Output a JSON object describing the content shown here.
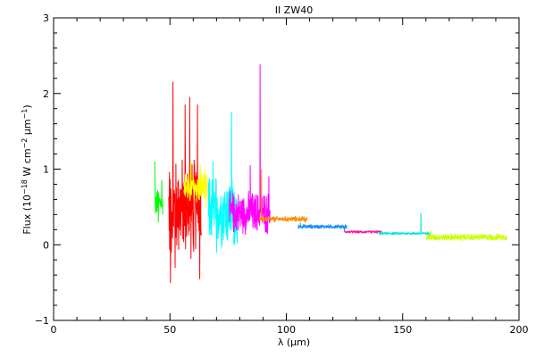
{
  "chart_data": {
    "type": "line",
    "title": "II ZW40",
    "xlabel": "λ (μm)",
    "ylabel": {
      "prefix": "Flux (10",
      "exp1": "−18",
      "mid1": " W cm",
      "exp2": "−2",
      "mid2": "μm",
      "exp3": "−1",
      "suffix": ")"
    },
    "xlim": [
      0,
      200
    ],
    "ylim": [
      -1,
      3
    ],
    "x_ticks": [
      0,
      50,
      100,
      150,
      200
    ],
    "x_tick_labels": [
      "0",
      "50",
      "100",
      "150",
      "200"
    ],
    "y_ticks": [
      -1,
      0,
      1,
      2,
      3
    ],
    "y_tick_labels": [
      "−1",
      "0",
      "1",
      "2",
      "3"
    ],
    "x_minor_step": 10,
    "y_minor_step": 0.2,
    "grid": false,
    "series": [
      {
        "color": "#00ff00",
        "x_range": [
          43.5,
          47
        ],
        "level": 0.55,
        "noise": 0.22,
        "points": [
          [
            43.5,
            1.1
          ],
          [
            45,
            0.3
          ],
          [
            46.5,
            0.85
          ]
        ]
      },
      {
        "color": "#ff0000",
        "x_range": [
          49.5,
          63.5
        ],
        "level": 0.5,
        "noise": 0.75,
        "points": [
          [
            50.2,
            -0.5
          ],
          [
            51.3,
            2.15
          ],
          [
            52.2,
            -0.3
          ],
          [
            56.5,
            1.85
          ],
          [
            58.5,
            1.95
          ],
          [
            61.8,
            1.85
          ],
          [
            62.8,
            -0.45
          ],
          [
            60,
            0.0
          ]
        ]
      },
      {
        "color": "#ffff00",
        "x_range": [
          56,
          66
        ],
        "level": 0.75,
        "noise": 0.25,
        "points": [
          [
            59,
            1.1
          ],
          [
            63,
            1.05
          ],
          [
            65.5,
            0.5
          ]
        ]
      },
      {
        "color": "#00ffff",
        "x_range": [
          66.5,
          79
        ],
        "level": 0.45,
        "noise": 0.55,
        "points": [
          [
            68.5,
            1.1
          ],
          [
            70,
            -0.1
          ],
          [
            76.5,
            1.75
          ],
          [
            77.5,
            0.0
          ]
        ]
      },
      {
        "color": "#ff00ff",
        "x_range": [
          75.5,
          93
        ],
        "level": 0.42,
        "noise": 0.32,
        "points": [
          [
            88.7,
            2.38
          ],
          [
            89.4,
            0.5
          ],
          [
            84.5,
            1.05
          ],
          [
            92.5,
            0.9
          ]
        ]
      },
      {
        "color": "#ff8c00",
        "x_range": [
          88.5,
          109
        ],
        "level": 0.34,
        "noise": 0.04,
        "points": [
          [
            89.3,
            1.0
          ],
          [
            95,
            0.3
          ],
          [
            108,
            0.3
          ]
        ]
      },
      {
        "color": "#1e90ff",
        "x_range": [
          105,
          126
        ],
        "level": 0.24,
        "noise": 0.03,
        "points": [
          [
            106,
            0.28
          ],
          [
            125,
            0.18
          ]
        ]
      },
      {
        "color": "#ff1493",
        "x_range": [
          125,
          141
        ],
        "level": 0.17,
        "noise": 0.02,
        "points": [
          [
            125,
            0.17
          ],
          [
            140,
            0.16
          ]
        ]
      },
      {
        "color": "#00e5e5",
        "x_range": [
          140,
          162
        ],
        "level": 0.15,
        "noise": 0.02,
        "points": [
          [
            157.8,
            0.42
          ],
          [
            158.4,
            0.15
          ]
        ]
      },
      {
        "color": "#ccff00",
        "x_range": [
          160,
          195
        ],
        "level": 0.1,
        "noise": 0.05,
        "points": [
          [
            162,
            0.19
          ],
          [
            175,
            0.05
          ],
          [
            194.5,
            0.12
          ]
        ]
      }
    ]
  }
}
